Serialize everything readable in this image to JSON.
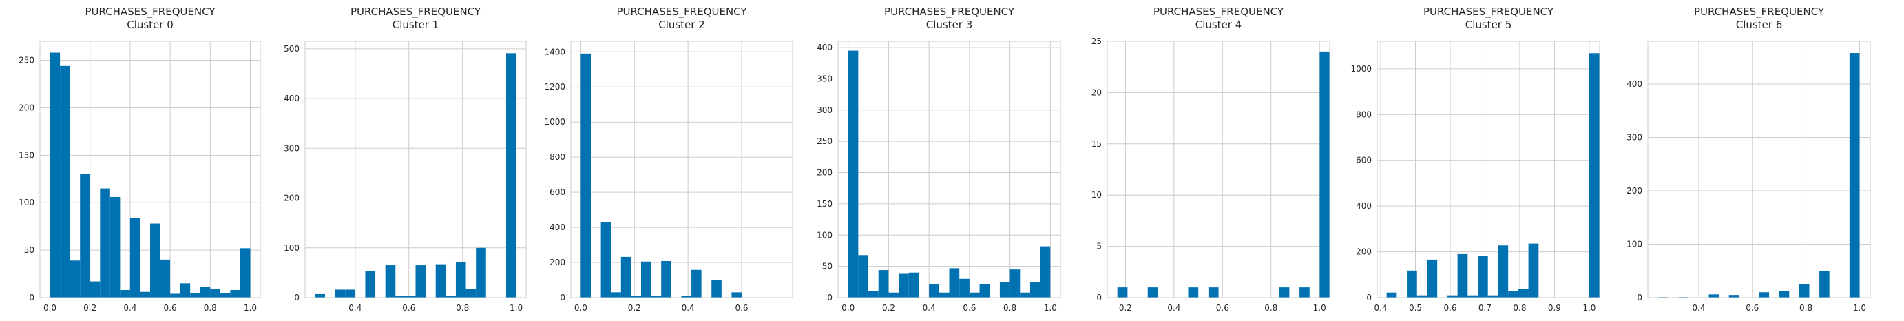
{
  "figure": {
    "background": "#ffffff",
    "plot_background": "#ffffff",
    "grid_color": "#cccccc",
    "bar_color": "#0072b2"
  },
  "chart_data": [
    {
      "type": "bar",
      "title": "PURCHASES_FREQUENCY",
      "subtitle": "Cluster 0",
      "xlabel": "",
      "ylabel": "",
      "xlim": [
        -0.05,
        1.05
      ],
      "ylim": [
        0,
        270
      ],
      "xticks": [
        0.0,
        0.2,
        0.4,
        0.6,
        0.8,
        1.0
      ],
      "xtick_labels": [
        "0.0",
        "0.2",
        "0.4",
        "0.6",
        "0.8",
        "1.0"
      ],
      "yticks": [
        0,
        50,
        100,
        150,
        200,
        250
      ],
      "ytick_labels": [
        "0",
        "50",
        "100",
        "150",
        "200",
        "250"
      ],
      "bin_start": 0.0,
      "bin_width": 0.05,
      "values": [
        258,
        244,
        39,
        130,
        17,
        115,
        106,
        8,
        84,
        6,
        78,
        40,
        4,
        15,
        5,
        11,
        9,
        5,
        8,
        52
      ],
      "grid": true
    },
    {
      "type": "bar",
      "title": "PURCHASES_FREQUENCY",
      "subtitle": "Cluster 1",
      "xlabel": "",
      "ylabel": "",
      "xlim": [
        0.213,
        1.037
      ],
      "ylim": [
        0,
        515
      ],
      "xticks": [
        0.4,
        0.6,
        0.8,
        1.0
      ],
      "xtick_labels": [
        "0.4",
        "0.6",
        "0.8",
        "1.0"
      ],
      "yticks": [
        0,
        100,
        200,
        300,
        400,
        500
      ],
      "ytick_labels": [
        "0",
        "100",
        "200",
        "300",
        "400",
        "500"
      ],
      "bin_start": 0.25,
      "bin_width": 0.0375,
      "values": [
        7,
        0,
        16,
        16,
        0,
        53,
        0,
        65,
        4,
        4,
        65,
        0,
        67,
        4,
        71,
        18,
        100,
        0,
        0,
        491
      ],
      "grid": true
    },
    {
      "type": "bar",
      "title": "PURCHASES_FREQUENCY",
      "subtitle": "Cluster 2",
      "xlabel": "",
      "ylabel": "",
      "xlim": [
        -0.037,
        0.79
      ],
      "ylim": [
        0,
        1460
      ],
      "xticks": [
        0.0,
        0.2,
        0.4,
        0.6
      ],
      "xtick_labels": [
        "0.0",
        "0.2",
        "0.4",
        "0.6"
      ],
      "yticks": [
        0,
        200,
        400,
        600,
        800,
        1000,
        1200,
        1400
      ],
      "ytick_labels": [
        "0",
        "200",
        "400",
        "600",
        "800",
        "1000",
        "1200",
        "1400"
      ],
      "bin_start": 0.0,
      "bin_width": 0.0375,
      "values": [
        1390,
        0,
        430,
        30,
        232,
        10,
        205,
        10,
        208,
        0,
        8,
        158,
        0,
        100,
        0,
        30,
        0,
        0,
        0,
        0
      ],
      "grid": true
    },
    {
      "type": "bar",
      "title": "PURCHASES_FREQUENCY",
      "subtitle": "Cluster 3",
      "xlabel": "",
      "ylabel": "",
      "xlim": [
        -0.05,
        1.05
      ],
      "ylim": [
        0,
        410
      ],
      "xticks": [
        0.0,
        0.2,
        0.4,
        0.6,
        0.8,
        1.0
      ],
      "xtick_labels": [
        "0.0",
        "0.2",
        "0.4",
        "0.6",
        "0.8",
        "1.0"
      ],
      "yticks": [
        0,
        50,
        100,
        150,
        200,
        250,
        300,
        350,
        400
      ],
      "ytick_labels": [
        "0",
        "50",
        "100",
        "150",
        "200",
        "250",
        "300",
        "350",
        "400"
      ],
      "bin_start": 0.0,
      "bin_width": 0.05,
      "values": [
        395,
        68,
        10,
        44,
        8,
        38,
        40,
        0,
        22,
        8,
        47,
        30,
        8,
        22,
        0,
        25,
        45,
        8,
        25,
        82
      ],
      "grid": true
    },
    {
      "type": "bar",
      "title": "PURCHASES_FREQUENCY",
      "subtitle": "Cluster 4",
      "xlabel": "",
      "ylabel": "",
      "xlim": [
        0.125,
        1.042
      ],
      "ylim": [
        0,
        25
      ],
      "xticks": [
        0.2,
        0.4,
        0.6,
        0.8,
        1.0
      ],
      "xtick_labels": [
        "0.2",
        "0.4",
        "0.6",
        "0.8",
        "1.0"
      ],
      "yticks": [
        0,
        5,
        10,
        15,
        20,
        25
      ],
      "ytick_labels": [
        "0",
        "5",
        "10",
        "15",
        "20",
        "25"
      ],
      "bin_start": 0.1667,
      "bin_width": 0.0417,
      "values": [
        1,
        0,
        0,
        1,
        0,
        0,
        0,
        1,
        0,
        1,
        0,
        0,
        0,
        0,
        0,
        0,
        1,
        0,
        1,
        0,
        24
      ],
      "grid": true
    },
    {
      "type": "bar",
      "title": "PURCHASES_FREQUENCY",
      "subtitle": "Cluster 5",
      "xlabel": "",
      "ylabel": "",
      "xlim": [
        0.39,
        1.03
      ],
      "ylim": [
        0,
        1120
      ],
      "xticks": [
        0.4,
        0.5,
        0.6,
        0.7,
        0.8,
        0.9,
        1.0
      ],
      "xtick_labels": [
        "0.4",
        "0.5",
        "0.6",
        "0.7",
        "0.8",
        "0.9",
        "1.0"
      ],
      "yticks": [
        0,
        200,
        400,
        600,
        800,
        1000
      ],
      "ytick_labels": [
        "0",
        "200",
        "400",
        "600",
        "800",
        "1000"
      ],
      "bin_start": 0.417,
      "bin_width": 0.02915,
      "values": [
        22,
        0,
        118,
        10,
        166,
        0,
        10,
        190,
        10,
        182,
        10,
        228,
        28,
        38,
        236,
        0,
        0,
        0,
        0,
        0,
        1068
      ],
      "grid": true
    },
    {
      "type": "bar",
      "title": "PURCHASES_FREQUENCY",
      "subtitle": "Cluster 6",
      "xlabel": "",
      "ylabel": "",
      "xlim": [
        0.21,
        1.04
      ],
      "ylim": [
        0,
        480
      ],
      "xticks": [
        0.4,
        0.6,
        0.8,
        1.0
      ],
      "xtick_labels": [
        "0.4",
        "0.6",
        "0.8",
        "1.0"
      ],
      "yticks": [
        0,
        100,
        200,
        300,
        400
      ],
      "ytick_labels": [
        "0",
        "100",
        "200",
        "300",
        "400"
      ],
      "bin_start": 0.25,
      "bin_width": 0.0375,
      "values": [
        1,
        0,
        1,
        0,
        0,
        6,
        0,
        5,
        0,
        0,
        10,
        0,
        12,
        0,
        25,
        0,
        50,
        0,
        0,
        458
      ],
      "grid": true
    }
  ]
}
